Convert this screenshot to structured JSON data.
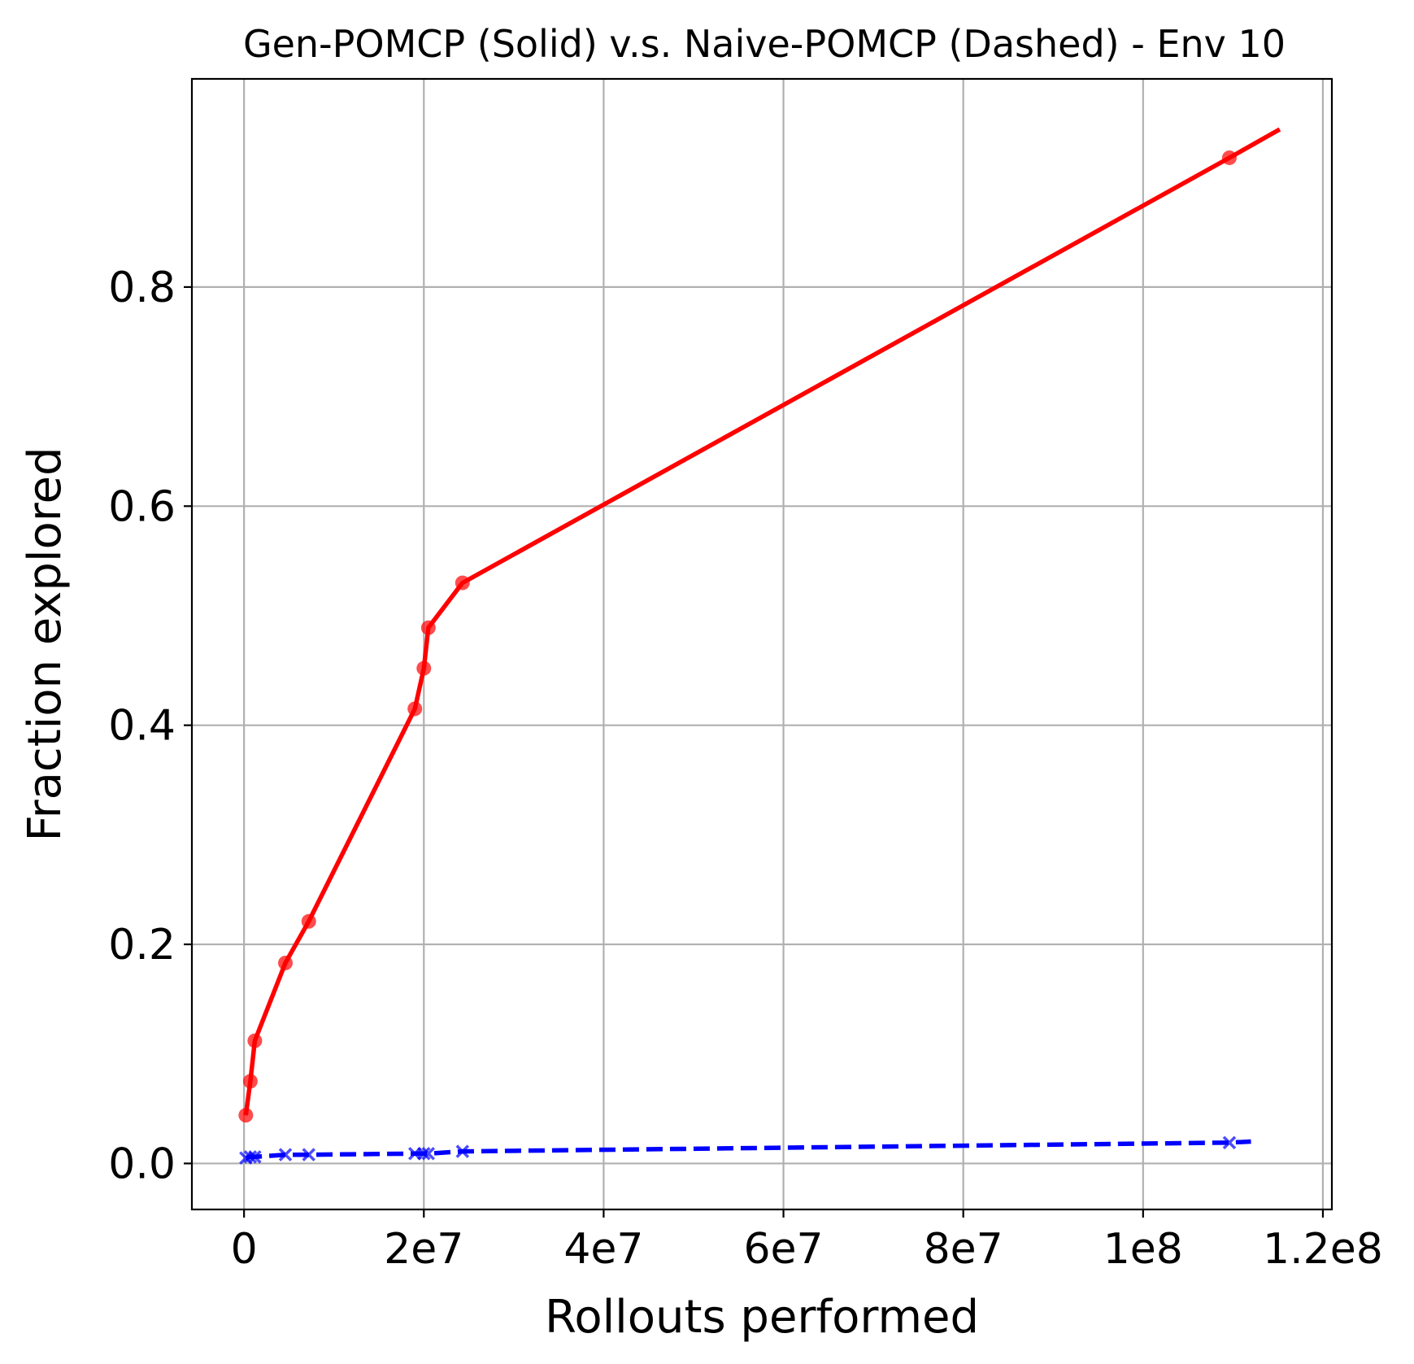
{
  "chart_data": {
    "type": "line",
    "title": "Gen-POMCP (Solid) v.s. Naive-POMCP (Dashed) - Env 10",
    "xlabel": "Rollouts performed",
    "ylabel": "Fraction explored",
    "xlim": [
      -5800000,
      121000000
    ],
    "ylim": [
      -0.042,
      0.99
    ],
    "grid": true,
    "x_ticks": [
      {
        "value": 0,
        "label": "0"
      },
      {
        "value": 20000000,
        "label": "2e7"
      },
      {
        "value": 40000000,
        "label": "4e7"
      },
      {
        "value": 60000000,
        "label": "6e7"
      },
      {
        "value": 80000000,
        "label": "8e7"
      },
      {
        "value": 100000000,
        "label": "1e8"
      },
      {
        "value": 120000000,
        "label": "1.2e8"
      }
    ],
    "y_ticks": [
      {
        "value": 0.0,
        "label": "0.0"
      },
      {
        "value": 0.2,
        "label": "0.2"
      },
      {
        "value": 0.4,
        "label": "0.4"
      },
      {
        "value": 0.6,
        "label": "0.6"
      },
      {
        "value": 0.8,
        "label": "0.8"
      }
    ],
    "series": [
      {
        "style": "solid",
        "color": "#ff0000",
        "marker": "circle",
        "line": [
          {
            "x": 200000,
            "y": 0.044
          },
          {
            "x": 700000,
            "y": 0.075
          },
          {
            "x": 1200000,
            "y": 0.112
          },
          {
            "x": 4600000,
            "y": 0.183
          },
          {
            "x": 7200000,
            "y": 0.221
          },
          {
            "x": 19000000,
            "y": 0.415
          },
          {
            "x": 20000000,
            "y": 0.452
          },
          {
            "x": 20500000,
            "y": 0.489
          },
          {
            "x": 24300000,
            "y": 0.53
          },
          {
            "x": 109600000,
            "y": 0.918
          },
          {
            "x": 115200000,
            "y": 0.944
          }
        ],
        "points": [
          {
            "x": 200000,
            "y": 0.044
          },
          {
            "x": 700000,
            "y": 0.075
          },
          {
            "x": 1200000,
            "y": 0.112
          },
          {
            "x": 4600000,
            "y": 0.183
          },
          {
            "x": 7200000,
            "y": 0.221
          },
          {
            "x": 19000000,
            "y": 0.415
          },
          {
            "x": 20000000,
            "y": 0.452
          },
          {
            "x": 20500000,
            "y": 0.489
          },
          {
            "x": 24300000,
            "y": 0.53
          },
          {
            "x": 109600000,
            "y": 0.918
          }
        ]
      },
      {
        "style": "dashed",
        "color": "#0000ff",
        "marker": "x",
        "line": [
          {
            "x": 200000,
            "y": 0.005
          },
          {
            "x": 700000,
            "y": 0.006
          },
          {
            "x": 1200000,
            "y": 0.006
          },
          {
            "x": 4600000,
            "y": 0.008
          },
          {
            "x": 7200000,
            "y": 0.008
          },
          {
            "x": 19000000,
            "y": 0.009
          },
          {
            "x": 20000000,
            "y": 0.009
          },
          {
            "x": 20500000,
            "y": 0.009
          },
          {
            "x": 24300000,
            "y": 0.011
          },
          {
            "x": 109600000,
            "y": 0.019
          },
          {
            "x": 112000000,
            "y": 0.02
          }
        ],
        "points": [
          {
            "x": 200000,
            "y": 0.005
          },
          {
            "x": 700000,
            "y": 0.006
          },
          {
            "x": 1200000,
            "y": 0.006
          },
          {
            "x": 4600000,
            "y": 0.008
          },
          {
            "x": 7200000,
            "y": 0.008
          },
          {
            "x": 19000000,
            "y": 0.009
          },
          {
            "x": 20000000,
            "y": 0.009
          },
          {
            "x": 20500000,
            "y": 0.009
          },
          {
            "x": 24300000,
            "y": 0.011
          },
          {
            "x": 109600000,
            "y": 0.019
          }
        ]
      }
    ]
  }
}
